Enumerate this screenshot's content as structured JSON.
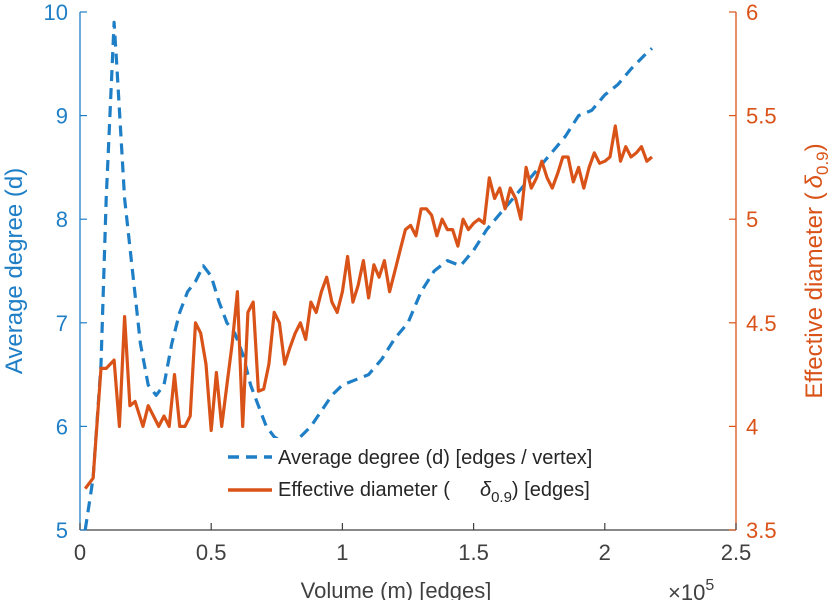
{
  "chart_data": {
    "type": "line",
    "title": "",
    "xlabel": "Volume (m) [edges]",
    "x_exponent_label": "×10",
    "x_exponent": "5",
    "ylabel_left": "Average degree (d)",
    "ylabel_right_prefix": "Effective diameter (",
    "ylabel_right_symbol": "δ",
    "ylabel_right_sub": "0.9",
    "ylabel_right_suffix": ")",
    "xlim": [
      0,
      2.5
    ],
    "ylim_left": [
      5,
      10
    ],
    "ylim_right": [
      3.5,
      6
    ],
    "xticks": [
      0,
      0.5,
      1,
      1.5,
      2,
      2.5
    ],
    "xtick_labels": [
      "0",
      "0.5",
      "1",
      "1.5",
      "2",
      "2.5"
    ],
    "yticks_left": [
      5,
      6,
      7,
      8,
      9,
      10
    ],
    "ytick_labels_left": [
      "5",
      "6",
      "7",
      "8",
      "9",
      "10"
    ],
    "yticks_right": [
      3.5,
      4,
      4.5,
      5,
      5.5,
      6
    ],
    "ytick_labels_right": [
      "3.5",
      "4",
      "4.5",
      "5",
      "5.5",
      "6"
    ],
    "colors": {
      "left": "#1f7fc6",
      "right": "#d95319",
      "axis": "#404040"
    },
    "legend": {
      "position": "bottom-center",
      "entries": [
        {
          "series": 0,
          "text": "Average degree (d) [edges / vertex]"
        },
        {
          "series": 1,
          "text_prefix": "Effective diameter (",
          "symbol": "δ",
          "sub": "0.9",
          "text_suffix": ") [edges]"
        }
      ]
    },
    "series": [
      {
        "name": "Average degree (d) [edges / vertex]",
        "axis": "left",
        "style": "dashed",
        "color": "#1f7fc6",
        "x": [
          0.02,
          0.05,
          0.08,
          0.1,
          0.13,
          0.14,
          0.17,
          0.2,
          0.23,
          0.26,
          0.29,
          0.32,
          0.35,
          0.38,
          0.41,
          0.44,
          0.47,
          0.5,
          0.53,
          0.56,
          0.59,
          0.62,
          0.65,
          0.68,
          0.71,
          0.74,
          0.77,
          0.8,
          0.84,
          0.88,
          0.92,
          0.96,
          1.0,
          1.05,
          1.1,
          1.15,
          1.2,
          1.25,
          1.3,
          1.35,
          1.4,
          1.45,
          1.5,
          1.55,
          1.6,
          1.65,
          1.7,
          1.75,
          1.8,
          1.85,
          1.9,
          1.95,
          2.0,
          2.05,
          2.1,
          2.15,
          2.18
        ],
        "values": [
          5.0,
          5.5,
          6.6,
          8.2,
          9.9,
          9.5,
          8.2,
          7.5,
          6.8,
          6.4,
          6.3,
          6.4,
          6.8,
          7.1,
          7.3,
          7.4,
          7.55,
          7.45,
          7.2,
          7.0,
          6.9,
          6.7,
          6.4,
          6.2,
          6.0,
          5.9,
          5.85,
          5.85,
          5.9,
          6.0,
          6.15,
          6.3,
          6.4,
          6.45,
          6.5,
          6.65,
          6.85,
          7.0,
          7.3,
          7.5,
          7.6,
          7.55,
          7.7,
          7.9,
          8.05,
          8.2,
          8.35,
          8.5,
          8.65,
          8.8,
          9.0,
          9.05,
          9.2,
          9.3,
          9.45,
          9.58,
          9.65
        ]
      },
      {
        "name": "Effective diameter (δ 0.9) [edges]",
        "axis": "right",
        "style": "solid",
        "color": "#d95319",
        "x": [
          0.02,
          0.05,
          0.08,
          0.1,
          0.13,
          0.15,
          0.17,
          0.19,
          0.21,
          0.24,
          0.26,
          0.28,
          0.3,
          0.32,
          0.34,
          0.36,
          0.38,
          0.4,
          0.42,
          0.44,
          0.46,
          0.48,
          0.5,
          0.52,
          0.54,
          0.56,
          0.58,
          0.6,
          0.62,
          0.64,
          0.66,
          0.68,
          0.7,
          0.72,
          0.74,
          0.76,
          0.78,
          0.8,
          0.82,
          0.84,
          0.86,
          0.88,
          0.9,
          0.92,
          0.94,
          0.96,
          0.98,
          1.0,
          1.02,
          1.04,
          1.06,
          1.08,
          1.1,
          1.12,
          1.14,
          1.16,
          1.18,
          1.2,
          1.22,
          1.24,
          1.26,
          1.28,
          1.3,
          1.32,
          1.34,
          1.36,
          1.38,
          1.4,
          1.42,
          1.44,
          1.46,
          1.48,
          1.5,
          1.52,
          1.54,
          1.56,
          1.58,
          1.6,
          1.62,
          1.64,
          1.66,
          1.68,
          1.7,
          1.72,
          1.74,
          1.76,
          1.78,
          1.8,
          1.82,
          1.84,
          1.86,
          1.88,
          1.9,
          1.92,
          1.94,
          1.96,
          1.98,
          2.0,
          2.02,
          2.04,
          2.06,
          2.08,
          2.1,
          2.12,
          2.14,
          2.16,
          2.18
        ],
        "values": [
          3.7,
          3.75,
          4.28,
          4.28,
          4.32,
          4.0,
          4.53,
          4.1,
          4.12,
          4.0,
          4.1,
          4.05,
          4.0,
          4.05,
          4.0,
          4.25,
          4.0,
          4.0,
          4.05,
          4.5,
          4.45,
          4.3,
          3.98,
          4.26,
          4.0,
          4.2,
          4.4,
          4.65,
          4.0,
          4.55,
          4.6,
          4.17,
          4.18,
          4.3,
          4.55,
          4.5,
          4.3,
          4.38,
          4.45,
          4.5,
          4.42,
          4.6,
          4.55,
          4.65,
          4.72,
          4.6,
          4.55,
          4.65,
          4.82,
          4.6,
          4.68,
          4.8,
          4.62,
          4.78,
          4.72,
          4.8,
          4.65,
          4.75,
          4.85,
          4.95,
          4.97,
          4.92,
          5.05,
          5.05,
          5.02,
          4.92,
          5.0,
          4.95,
          4.95,
          4.87,
          5.0,
          4.95,
          4.98,
          5.0,
          4.98,
          5.2,
          5.1,
          5.15,
          5.05,
          5.15,
          5.1,
          5.0,
          5.25,
          5.15,
          5.2,
          5.28,
          5.2,
          5.15,
          5.22,
          5.3,
          5.3,
          5.18,
          5.25,
          5.15,
          5.25,
          5.32,
          5.27,
          5.28,
          5.3,
          5.45,
          5.28,
          5.35,
          5.3,
          5.32,
          5.35,
          5.28,
          5.3
        ]
      }
    ]
  }
}
